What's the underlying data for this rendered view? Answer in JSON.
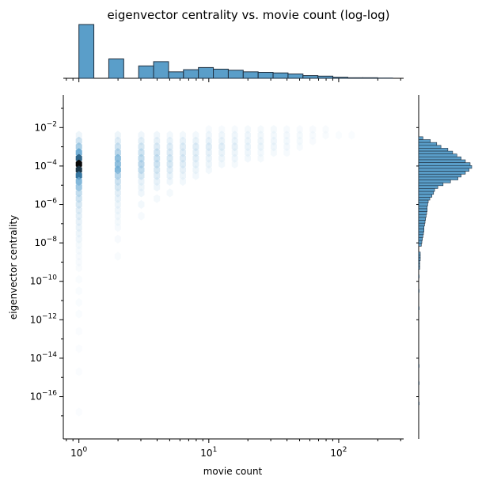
{
  "chart_data": {
    "type": "heatmap",
    "subtype": "hexbin jointplot with marginal histograms",
    "title": "eigenvector centrality vs. movie count (log-log)",
    "xlabel": "movie count",
    "ylabel": "eigenvector centrality",
    "x_scale": "log",
    "y_scale": "log",
    "x_ticks": [
      {
        "value": 1,
        "base": "10",
        "exp": "0"
      },
      {
        "value": 10,
        "base": "10",
        "exp": "1"
      },
      {
        "value": 100,
        "base": "10",
        "exp": "2"
      }
    ],
    "y_ticks": [
      {
        "value": 0.01,
        "base": "10",
        "exp": "−2"
      },
      {
        "value": 0.0001,
        "base": "10",
        "exp": "−4"
      },
      {
        "value": 1e-06,
        "base": "10",
        "exp": "−6"
      },
      {
        "value": 1e-08,
        "base": "10",
        "exp": "−8"
      },
      {
        "value": 1e-10,
        "base": "10",
        "exp": "−10"
      },
      {
        "value": 1e-12,
        "base": "10",
        "exp": "−12"
      },
      {
        "value": 1e-14,
        "base": "10",
        "exp": "−14"
      },
      {
        "value": 1e-16,
        "base": "10",
        "exp": "−16"
      }
    ],
    "xlim_log10": [
      -0.12,
      2.5
    ],
    "ylim_log10": [
      -18.2,
      -0.3
    ],
    "colors": {
      "bar_fill": "#5a9ec9",
      "bar_stroke": "#1f2f3f",
      "hex_dark": "#08306b",
      "hex_light": "#f2f8fd"
    },
    "top_marginal": {
      "bins_log10": [
        [
          0.0,
          0.115
        ],
        [
          0.115,
          0.23
        ],
        [
          0.23,
          0.345
        ],
        [
          0.345,
          0.46
        ],
        [
          0.46,
          0.575
        ],
        [
          0.575,
          0.69
        ],
        [
          0.69,
          0.805
        ],
        [
          0.805,
          0.92
        ],
        [
          0.92,
          1.035
        ],
        [
          1.035,
          1.15
        ],
        [
          1.15,
          1.265
        ],
        [
          1.265,
          1.38
        ],
        [
          1.38,
          1.495
        ],
        [
          1.495,
          1.61
        ],
        [
          1.61,
          1.725
        ],
        [
          1.725,
          1.84
        ],
        [
          1.84,
          1.955
        ],
        [
          1.955,
          2.07
        ],
        [
          2.07,
          2.185
        ],
        [
          2.185,
          2.3
        ],
        [
          2.3,
          2.415
        ]
      ],
      "counts": [
        1.0,
        0,
        0.36,
        0,
        0.23,
        0.31,
        0.12,
        0.16,
        0.2,
        0.17,
        0.15,
        0.12,
        0.11,
        0.1,
        0.08,
        0.05,
        0.04,
        0.02,
        0.01,
        0.01,
        0.005
      ]
    },
    "right_marginal": {
      "bin_width_log10": 0.15,
      "counts_by_center_log10": [
        [
          -2.55,
          0.08
        ],
        [
          -2.7,
          0.22
        ],
        [
          -2.85,
          0.34
        ],
        [
          -3.0,
          0.42
        ],
        [
          -3.15,
          0.55
        ],
        [
          -3.3,
          0.64
        ],
        [
          -3.45,
          0.72
        ],
        [
          -3.6,
          0.8
        ],
        [
          -3.75,
          0.88
        ],
        [
          -3.9,
          0.97
        ],
        [
          -4.05,
          1.0
        ],
        [
          -4.2,
          0.95
        ],
        [
          -4.35,
          0.88
        ],
        [
          -4.5,
          0.8
        ],
        [
          -4.65,
          0.74
        ],
        [
          -4.8,
          0.6
        ],
        [
          -4.95,
          0.46
        ],
        [
          -5.1,
          0.36
        ],
        [
          -5.25,
          0.3
        ],
        [
          -5.4,
          0.28
        ],
        [
          -5.55,
          0.25
        ],
        [
          -5.7,
          0.21
        ],
        [
          -5.85,
          0.18
        ],
        [
          -6.0,
          0.17
        ],
        [
          -6.15,
          0.16
        ],
        [
          -6.3,
          0.16
        ],
        [
          -6.45,
          0.15
        ],
        [
          -6.6,
          0.14
        ],
        [
          -6.75,
          0.13
        ],
        [
          -6.9,
          0.12
        ],
        [
          -7.05,
          0.11
        ],
        [
          -7.2,
          0.1
        ],
        [
          -7.35,
          0.1
        ],
        [
          -7.5,
          0.09
        ],
        [
          -7.65,
          0.08
        ],
        [
          -7.8,
          0.07
        ],
        [
          -7.95,
          0.06
        ],
        [
          -8.1,
          0.05
        ],
        [
          -8.55,
          0.03
        ],
        [
          -8.7,
          0.03
        ],
        [
          -8.85,
          0.03
        ],
        [
          -9.0,
          0.02
        ],
        [
          -9.15,
          0.02
        ],
        [
          -9.3,
          0.02
        ],
        [
          -9.75,
          0.01
        ],
        [
          -10.5,
          0.01
        ],
        [
          -11.4,
          0.01
        ],
        [
          -14.4,
          0.005
        ],
        [
          -15.3,
          0.005
        ],
        [
          -16.35,
          0.005
        ]
      ]
    },
    "hexbin": {
      "value_meaning": "relative count, 0-1 (1 = densest)",
      "cells": [
        [
          0,
          -2.4,
          0.12
        ],
        [
          0,
          -2.7,
          0.3
        ],
        [
          0,
          -3.0,
          0.45
        ],
        [
          0,
          -3.3,
          0.65
        ],
        [
          0,
          -3.6,
          0.9
        ],
        [
          0,
          -3.9,
          1.0
        ],
        [
          0,
          -4.2,
          0.95
        ],
        [
          0,
          -4.5,
          0.88
        ],
        [
          0,
          -4.8,
          0.6
        ],
        [
          0,
          -5.1,
          0.5
        ],
        [
          0,
          -5.4,
          0.35
        ],
        [
          0,
          -5.7,
          0.3
        ],
        [
          0,
          -6.0,
          0.25
        ],
        [
          0,
          -6.3,
          0.2
        ],
        [
          0,
          -6.6,
          0.18
        ],
        [
          0,
          -6.9,
          0.16
        ],
        [
          0,
          -7.2,
          0.14
        ],
        [
          0,
          -7.5,
          0.12
        ],
        [
          0,
          -7.8,
          0.1
        ],
        [
          0,
          -8.1,
          0.06
        ],
        [
          0,
          -8.4,
          0.05
        ],
        [
          0,
          -8.7,
          0.04
        ],
        [
          0,
          -9.0,
          0.04
        ],
        [
          0,
          -9.3,
          0.03
        ],
        [
          0,
          -9.9,
          0.02
        ],
        [
          0,
          -10.5,
          0.02
        ],
        [
          0,
          -11.1,
          0.02
        ],
        [
          0,
          -11.7,
          0.02
        ],
        [
          0,
          -12.6,
          0.01
        ],
        [
          0,
          -13.5,
          0.01
        ],
        [
          0,
          -14.7,
          0.01
        ],
        [
          0,
          -16.8,
          0.01
        ],
        [
          0.3,
          -2.4,
          0.12
        ],
        [
          0.3,
          -2.7,
          0.2
        ],
        [
          0.3,
          -3.0,
          0.3
        ],
        [
          0.3,
          -3.3,
          0.4
        ],
        [
          0.3,
          -3.6,
          0.55
        ],
        [
          0.3,
          -3.9,
          0.55
        ],
        [
          0.3,
          -4.2,
          0.6
        ],
        [
          0.3,
          -4.5,
          0.4
        ],
        [
          0.3,
          -4.8,
          0.3
        ],
        [
          0.3,
          -5.1,
          0.25
        ],
        [
          0.3,
          -5.4,
          0.18
        ],
        [
          0.3,
          -5.7,
          0.15
        ],
        [
          0.3,
          -6.0,
          0.12
        ],
        [
          0.3,
          -6.3,
          0.1
        ],
        [
          0.3,
          -6.6,
          0.08
        ],
        [
          0.3,
          -6.9,
          0.06
        ],
        [
          0.3,
          -7.2,
          0.05
        ],
        [
          0.3,
          -7.8,
          0.04
        ],
        [
          0.3,
          -8.7,
          0.03
        ],
        [
          0.48,
          -2.4,
          0.1
        ],
        [
          0.48,
          -2.7,
          0.18
        ],
        [
          0.48,
          -3.0,
          0.25
        ],
        [
          0.48,
          -3.3,
          0.3
        ],
        [
          0.48,
          -3.6,
          0.35
        ],
        [
          0.48,
          -3.9,
          0.38
        ],
        [
          0.48,
          -4.2,
          0.35
        ],
        [
          0.48,
          -4.5,
          0.25
        ],
        [
          0.48,
          -4.8,
          0.15
        ],
        [
          0.48,
          -5.1,
          0.12
        ],
        [
          0.48,
          -5.4,
          0.1
        ],
        [
          0.48,
          -6.0,
          0.08
        ],
        [
          0.48,
          -6.6,
          0.05
        ],
        [
          0.6,
          -2.4,
          0.1
        ],
        [
          0.6,
          -2.7,
          0.16
        ],
        [
          0.6,
          -3.0,
          0.22
        ],
        [
          0.6,
          -3.3,
          0.28
        ],
        [
          0.6,
          -3.6,
          0.3
        ],
        [
          0.6,
          -3.9,
          0.3
        ],
        [
          0.6,
          -4.2,
          0.25
        ],
        [
          0.6,
          -4.5,
          0.2
        ],
        [
          0.6,
          -4.8,
          0.15
        ],
        [
          0.6,
          -5.1,
          0.1
        ],
        [
          0.6,
          -5.7,
          0.06
        ],
        [
          0.7,
          -2.4,
          0.08
        ],
        [
          0.7,
          -2.7,
          0.15
        ],
        [
          0.7,
          -3.0,
          0.2
        ],
        [
          0.7,
          -3.3,
          0.22
        ],
        [
          0.7,
          -3.6,
          0.25
        ],
        [
          0.7,
          -3.9,
          0.25
        ],
        [
          0.7,
          -4.2,
          0.2
        ],
        [
          0.7,
          -4.5,
          0.15
        ],
        [
          0.7,
          -4.8,
          0.1
        ],
        [
          0.7,
          -5.4,
          0.06
        ],
        [
          0.8,
          -2.4,
          0.08
        ],
        [
          0.8,
          -2.7,
          0.15
        ],
        [
          0.8,
          -3.0,
          0.2
        ],
        [
          0.8,
          -3.3,
          0.2
        ],
        [
          0.8,
          -3.6,
          0.22
        ],
        [
          0.8,
          -3.9,
          0.2
        ],
        [
          0.8,
          -4.2,
          0.16
        ],
        [
          0.8,
          -4.5,
          0.12
        ],
        [
          0.8,
          -4.8,
          0.08
        ],
        [
          0.9,
          -2.4,
          0.08
        ],
        [
          0.9,
          -2.7,
          0.14
        ],
        [
          0.9,
          -3.0,
          0.2
        ],
        [
          0.9,
          -3.3,
          0.18
        ],
        [
          0.9,
          -3.6,
          0.18
        ],
        [
          0.9,
          -3.9,
          0.15
        ],
        [
          0.9,
          -4.2,
          0.12
        ],
        [
          0.9,
          -4.5,
          0.08
        ],
        [
          1.0,
          -2.1,
          0.05
        ],
        [
          1.0,
          -2.4,
          0.1
        ],
        [
          1.0,
          -2.7,
          0.15
        ],
        [
          1.0,
          -3.0,
          0.2
        ],
        [
          1.0,
          -3.3,
          0.16
        ],
        [
          1.0,
          -3.6,
          0.14
        ],
        [
          1.0,
          -3.9,
          0.12
        ],
        [
          1.0,
          -4.2,
          0.08
        ],
        [
          1.1,
          -2.1,
          0.05
        ],
        [
          1.1,
          -2.4,
          0.1
        ],
        [
          1.1,
          -2.7,
          0.14
        ],
        [
          1.1,
          -3.0,
          0.18
        ],
        [
          1.1,
          -3.3,
          0.14
        ],
        [
          1.1,
          -3.6,
          0.12
        ],
        [
          1.1,
          -3.9,
          0.08
        ],
        [
          1.2,
          -2.1,
          0.05
        ],
        [
          1.2,
          -2.4,
          0.1
        ],
        [
          1.2,
          -2.7,
          0.13
        ],
        [
          1.2,
          -3.0,
          0.16
        ],
        [
          1.2,
          -3.3,
          0.12
        ],
        [
          1.2,
          -3.6,
          0.1
        ],
        [
          1.2,
          -3.9,
          0.06
        ],
        [
          1.3,
          -2.1,
          0.06
        ],
        [
          1.3,
          -2.4,
          0.1
        ],
        [
          1.3,
          -2.7,
          0.12
        ],
        [
          1.3,
          -3.0,
          0.13
        ],
        [
          1.3,
          -3.3,
          0.1
        ],
        [
          1.3,
          -3.6,
          0.08
        ],
        [
          1.4,
          -2.1,
          0.06
        ],
        [
          1.4,
          -2.4,
          0.09
        ],
        [
          1.4,
          -2.7,
          0.11
        ],
        [
          1.4,
          -3.0,
          0.12
        ],
        [
          1.4,
          -3.3,
          0.08
        ],
        [
          1.4,
          -3.6,
          0.06
        ],
        [
          1.5,
          -2.1,
          0.06
        ],
        [
          1.5,
          -2.4,
          0.08
        ],
        [
          1.5,
          -2.7,
          0.1
        ],
        [
          1.5,
          -3.0,
          0.1
        ],
        [
          1.5,
          -3.3,
          0.06
        ],
        [
          1.6,
          -2.1,
          0.05
        ],
        [
          1.6,
          -2.4,
          0.07
        ],
        [
          1.6,
          -2.7,
          0.08
        ],
        [
          1.6,
          -3.0,
          0.07
        ],
        [
          1.6,
          -3.3,
          0.05
        ],
        [
          1.7,
          -2.1,
          0.04
        ],
        [
          1.7,
          -2.4,
          0.06
        ],
        [
          1.7,
          -2.7,
          0.06
        ],
        [
          1.7,
          -3.0,
          0.05
        ],
        [
          1.8,
          -2.1,
          0.04
        ],
        [
          1.8,
          -2.4,
          0.05
        ],
        [
          1.8,
          -2.7,
          0.04
        ],
        [
          1.9,
          -2.1,
          0.03
        ],
        [
          1.9,
          -2.4,
          0.03
        ],
        [
          2.0,
          -2.4,
          0.02
        ],
        [
          2.1,
          -2.4,
          0.02
        ]
      ]
    }
  }
}
